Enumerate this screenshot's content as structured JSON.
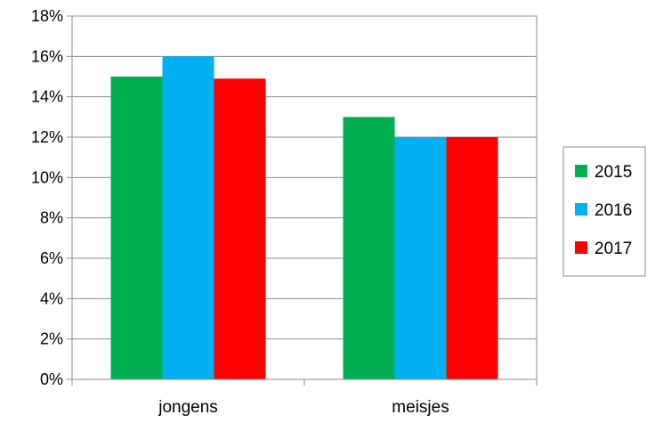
{
  "chart_data": {
    "type": "bar",
    "categories": [
      "jongens",
      "meisjes"
    ],
    "series": [
      {
        "name": "2015",
        "values": [
          15,
          13
        ],
        "color": "#00b050"
      },
      {
        "name": "2016",
        "values": [
          16,
          12
        ],
        "color": "#00b0f0"
      },
      {
        "name": "2017",
        "values": [
          14.9,
          12
        ],
        "color": "#ff0000"
      }
    ],
    "ylim": [
      0,
      18
    ],
    "y_ticks": [
      "0%",
      "2%",
      "4%",
      "6%",
      "8%",
      "10%",
      "12%",
      "14%",
      "16%",
      "18%"
    ],
    "y_tick_values": [
      0,
      2,
      4,
      6,
      8,
      10,
      12,
      14,
      16,
      18
    ],
    "grid": true,
    "legend": "right",
    "title": "",
    "xlabel": "",
    "ylabel": ""
  }
}
